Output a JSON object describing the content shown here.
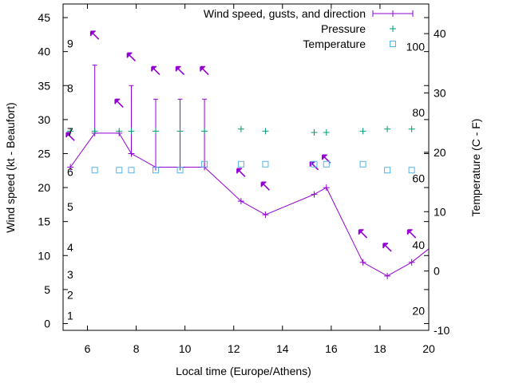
{
  "chart_data": {
    "type": "line",
    "xlabel": "Local time (Europe/Athens)",
    "ylabel": "Wind speed (kt - Beaufort)",
    "y2label": "Temperature (C - F)",
    "xlim": [
      5,
      20
    ],
    "ylim": [
      -1,
      47
    ],
    "y2lim": [
      -10,
      45
    ],
    "x_ticks": [
      6,
      8,
      10,
      12,
      14,
      16,
      18,
      20
    ],
    "y_ticks": [
      0,
      5,
      10,
      15,
      20,
      25,
      30,
      35,
      40,
      45
    ],
    "y2_ticks": [
      -10,
      0,
      10,
      20,
      30,
      40
    ],
    "beaufort_ticks": [
      {
        "label": "1",
        "y": 1.2
      },
      {
        "label": "2",
        "y": 4.2
      },
      {
        "label": "3",
        "y": 7.2
      },
      {
        "label": "4",
        "y": 11.2
      },
      {
        "label": "5",
        "y": 17.2
      },
      {
        "label": "6",
        "y": 22.3
      },
      {
        "label": "7",
        "y": 28.2
      },
      {
        "label": "8",
        "y": 34.6
      },
      {
        "label": "9",
        "y": 41.2
      }
    ],
    "fahrenheit_ticks": [
      {
        "label": "20",
        "y2": -6.7
      },
      {
        "label": "40",
        "y2": 4.4
      },
      {
        "label": "60",
        "y2": 15.6
      },
      {
        "label": "80",
        "y2": 26.7
      },
      {
        "label": "100",
        "y2": 37.8
      }
    ],
    "legend": "top-right",
    "grid": false,
    "series": [
      {
        "name": "Wind speed, gusts, and direction",
        "kind": "wind",
        "color": "#9400d3",
        "x": [
          5.3,
          6.3,
          7.3,
          7.8,
          8.8,
          9.8,
          10.8,
          12.3,
          13.3,
          15.3,
          15.8,
          17.3,
          18.3,
          19.3,
          20.0
        ],
        "values": [
          23,
          28,
          28,
          25,
          23,
          23,
          23,
          18,
          16,
          19,
          20,
          9,
          7,
          9,
          11
        ],
        "gusts": [
          null,
          38,
          null,
          35,
          33,
          33,
          33,
          null,
          null,
          null,
          null,
          null,
          null,
          null,
          null
        ],
        "direction_arrows": [
          {
            "x": 5.3,
            "y": 27.5
          },
          {
            "x": 6.3,
            "y": 42.4
          },
          {
            "x": 7.3,
            "y": 32.4
          },
          {
            "x": 7.8,
            "y": 39.2
          },
          {
            "x": 8.8,
            "y": 37.2
          },
          {
            "x": 9.8,
            "y": 37.2
          },
          {
            "x": 10.8,
            "y": 37.2
          },
          {
            "x": 12.3,
            "y": 22.2
          },
          {
            "x": 13.3,
            "y": 20.2
          },
          {
            "x": 15.3,
            "y": 23.2
          },
          {
            "x": 15.8,
            "y": 24.2
          },
          {
            "x": 17.3,
            "y": 13.2
          },
          {
            "x": 18.3,
            "y": 11.2
          },
          {
            "x": 19.3,
            "y": 13.2
          }
        ]
      },
      {
        "name": "Pressure",
        "kind": "pressure",
        "color": "#009e73",
        "x": [
          5.3,
          6.3,
          7.3,
          7.8,
          8.8,
          9.8,
          10.8,
          12.3,
          13.3,
          15.3,
          15.8,
          17.3,
          18.3,
          19.3
        ],
        "values": [
          28.3,
          28.3,
          28.3,
          28.3,
          28.3,
          28.3,
          28.3,
          28.6,
          28.3,
          28.1,
          28.1,
          28.3,
          28.6,
          28.6
        ]
      },
      {
        "name": "Temperature",
        "kind": "temperature",
        "color": "#56b4e9",
        "axis": "y2",
        "x": [
          6.3,
          7.3,
          7.8,
          8.8,
          9.8,
          10.8,
          12.3,
          13.3,
          15.3,
          15.8,
          17.3,
          18.3,
          19.3
        ],
        "values": [
          17,
          17,
          17,
          17,
          17,
          18,
          18,
          18,
          18,
          18,
          18,
          17,
          17
        ]
      }
    ]
  }
}
